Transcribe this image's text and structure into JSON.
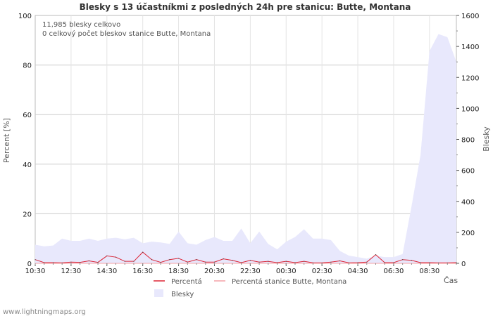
{
  "chart_data": {
    "type": "line",
    "title": "Blesky s 13 účastníkmi z posledných 24h pre stanicu: Butte, Montana",
    "ylabel_left": "Percent   [%]",
    "ylabel_right": "Blesky",
    "xlabel": "Čas",
    "ylim_left": [
      0,
      100
    ],
    "ylim_right": [
      0,
      1600
    ],
    "yticks_left": [
      0,
      20,
      40,
      60,
      80,
      100
    ],
    "yticks_right": [
      0,
      200,
      400,
      600,
      800,
      1000,
      1200,
      1400,
      1600
    ],
    "x_tick_labels": [
      "10:30",
      "12:30",
      "14:30",
      "16:30",
      "18:30",
      "20:30",
      "22:30",
      "00:30",
      "02:30",
      "04:30",
      "06:30",
      "08:30"
    ],
    "x_range_hours": [
      10.5,
      34.0
    ],
    "annotations": [
      "11,985 blesky celkovo",
      "0 celkový počet bleskov stanice Butte, Montana"
    ],
    "grid": true,
    "series": [
      {
        "name": "Percentá",
        "axis": "left",
        "color": "#dd2233",
        "x": [
          10.5,
          11.0,
          11.5,
          12.0,
          12.5,
          13.0,
          13.5,
          14.0,
          14.5,
          15.0,
          15.5,
          16.0,
          16.5,
          17.0,
          17.5,
          18.0,
          18.5,
          19.0,
          19.5,
          20.0,
          20.5,
          21.0,
          21.5,
          22.0,
          22.5,
          23.0,
          23.5,
          24.0,
          24.5,
          25.0,
          25.5,
          26.0,
          26.5,
          27.0,
          27.5,
          28.0,
          28.5,
          29.0,
          29.5,
          30.0,
          30.5,
          31.0,
          31.5,
          32.0,
          32.5,
          33.0,
          33.5,
          34.0
        ],
        "values": [
          1.5,
          0.3,
          0.3,
          0.2,
          0.5,
          0.4,
          1.0,
          0.4,
          3.0,
          2.5,
          0.8,
          0.8,
          4.5,
          1.5,
          0.4,
          1.5,
          2.0,
          0.5,
          1.5,
          0.5,
          0.5,
          1.8,
          1.2,
          0.3,
          1.2,
          0.5,
          0.8,
          0.3,
          0.8,
          0.3,
          0.8,
          0.2,
          0.2,
          0.5,
          1.0,
          0.2,
          0.3,
          0.5,
          3.5,
          0.3,
          0.3,
          1.5,
          1.2,
          0.3,
          0.3,
          0.2,
          0.2,
          0.3
        ]
      },
      {
        "name": "Percentá stanice Butte, Montana",
        "axis": "left",
        "color": "#f4a0a6",
        "x": [
          10.5,
          34.0
        ],
        "values": [
          0,
          0
        ]
      },
      {
        "name": "Blesky",
        "axis": "right",
        "type": "area",
        "color": "#e8e8fc",
        "x": [
          10.5,
          11.0,
          11.5,
          12.0,
          12.5,
          13.0,
          13.5,
          14.0,
          14.5,
          15.0,
          15.5,
          16.0,
          16.5,
          17.0,
          17.5,
          18.0,
          18.5,
          19.0,
          19.5,
          20.0,
          20.5,
          21.0,
          21.5,
          22.0,
          22.5,
          23.0,
          23.5,
          24.0,
          24.5,
          25.0,
          25.5,
          26.0,
          26.5,
          27.0,
          27.5,
          28.0,
          28.5,
          29.0,
          29.5,
          30.0,
          30.5,
          31.0,
          31.5,
          32.0,
          32.5,
          33.0,
          33.5,
          34.0
        ],
        "values": [
          120,
          110,
          115,
          160,
          145,
          145,
          160,
          145,
          160,
          165,
          155,
          165,
          130,
          140,
          135,
          125,
          205,
          130,
          120,
          150,
          170,
          145,
          145,
          225,
          130,
          205,
          125,
          90,
          140,
          170,
          220,
          160,
          160,
          150,
          80,
          50,
          40,
          30,
          50,
          40,
          40,
          60,
          370,
          700,
          1370,
          1480,
          1460,
          1300
        ]
      }
    ],
    "legend": [
      {
        "label": "Percentá",
        "kind": "line",
        "color": "#dd2233"
      },
      {
        "label": "Percentá stanice Butte, Montana",
        "kind": "line",
        "color": "#f4a0a6"
      },
      {
        "label": "Blesky",
        "kind": "area",
        "color": "#e8e8fc"
      }
    ],
    "footer": "www.lightningmaps.org"
  }
}
